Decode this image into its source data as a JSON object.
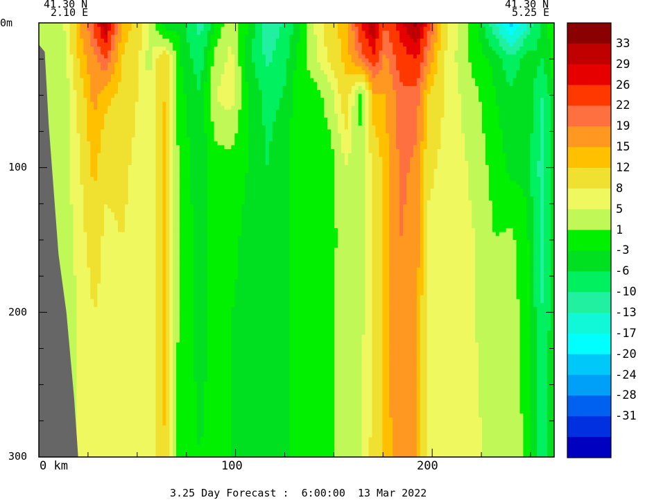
{
  "header": {
    "left_lat": "41.30 N",
    "left_lon": "2.10 E",
    "right_lat": "41.30 N",
    "right_lon": "5.25 E"
  },
  "footer": {
    "caption": "3.25 Day Forecast :  6:00:00  13 Mar 2022"
  },
  "chart_data": {
    "type": "heatmap",
    "title": "",
    "xlabel": "km",
    "ylabel": "m",
    "x_ticks": [
      "0 km",
      "100",
      "200"
    ],
    "y_ticks": [
      "0m",
      "100",
      "200",
      "300"
    ],
    "xlim": [
      0,
      262
    ],
    "ylim": [
      0,
      300
    ],
    "y_inverted": true,
    "colorbar": {
      "labels": [
        "33",
        "29",
        "26",
        "22",
        "19",
        "15",
        "12",
        "8",
        "5",
        "1",
        "-3",
        "-6",
        "-10",
        "-13",
        "-17",
        "-20",
        "-24",
        "-28",
        "-31"
      ],
      "levels": [
        35,
        33,
        29,
        26,
        22,
        19,
        15,
        12,
        8,
        5,
        1,
        -3,
        -6,
        -10,
        -13,
        -17,
        -20,
        -24,
        -28,
        -31,
        -35
      ],
      "colors": [
        "#8b0000",
        "#c00000",
        "#e60000",
        "#ff3800",
        "#ff7040",
        "#ff9820",
        "#ffc000",
        "#f0e030",
        "#f0f860",
        "#c0f858",
        "#00f000",
        "#00e020",
        "#00f060",
        "#20f0a0",
        "#10f8d8",
        "#00ffff",
        "#00c8f8",
        "#00a0f8",
        "#0060f0",
        "#0030e0",
        "#0000c0"
      ]
    },
    "bathymetry_km": [
      0,
      3,
      5,
      10,
      14,
      18,
      20,
      21
    ],
    "bathymetry_depth_m": [
      15,
      20,
      70,
      160,
      200,
      260,
      300,
      300
    ],
    "columns": [
      {
        "x": 0,
        "v": [
          2,
          2,
          2,
          2,
          2,
          2,
          2
        ]
      },
      {
        "x": 12,
        "v": [
          4,
          2,
          2,
          3,
          3,
          3,
          3
        ]
      },
      {
        "x": 20,
        "v": [
          14,
          12,
          9,
          7,
          6,
          5,
          5
        ]
      },
      {
        "x": 28,
        "v": [
          23,
          18,
          16,
          13,
          10,
          8,
          7
        ]
      },
      {
        "x": 34,
        "v": [
          32,
          22,
          13,
          9,
          7,
          7,
          6
        ]
      },
      {
        "x": 42,
        "v": [
          15,
          12,
          11,
          9,
          8,
          7,
          7
        ]
      },
      {
        "x": 50,
        "v": [
          10,
          9,
          8,
          7,
          7,
          6,
          6
        ]
      },
      {
        "x": 56,
        "v": [
          5,
          4,
          5,
          5,
          5,
          5,
          5
        ]
      },
      {
        "x": 64,
        "v": [
          -6,
          12,
          12,
          14,
          13,
          13,
          12
        ]
      },
      {
        "x": 72,
        "v": [
          -4,
          -3,
          -2,
          -1,
          -1,
          -1,
          -2
        ]
      },
      {
        "x": 82,
        "v": [
          -12,
          -8,
          -6,
          -5,
          -4,
          -4,
          -3
        ]
      },
      {
        "x": 90,
        "v": [
          -3,
          3,
          5,
          -1,
          -2,
          -2,
          -2
        ]
      },
      {
        "x": 98,
        "v": [
          5,
          6,
          7,
          -1,
          -2,
          -3,
          -3
        ]
      },
      {
        "x": 106,
        "v": [
          -3,
          -4,
          -3,
          -3,
          -4,
          -4,
          -4
        ]
      },
      {
        "x": 116,
        "v": [
          -12,
          -11,
          -7,
          -6,
          -5,
          -5,
          -5
        ]
      },
      {
        "x": 124,
        "v": [
          -10,
          -8,
          -6,
          -4,
          -4,
          -4,
          -4
        ]
      },
      {
        "x": 132,
        "v": [
          -4,
          -2,
          -1,
          -1,
          -1,
          -1,
          -1
        ]
      },
      {
        "x": 140,
        "v": [
          5,
          4,
          -1,
          -2,
          -2,
          -2,
          -2
        ]
      },
      {
        "x": 148,
        "v": [
          10,
          9,
          3,
          -1,
          -1,
          0,
          0
        ]
      },
      {
        "x": 156,
        "v": [
          14,
          13,
          11,
          5,
          4,
          4,
          4
        ]
      },
      {
        "x": 164,
        "v": [
          26,
          20,
          -1,
          2,
          3,
          4,
          5
        ]
      },
      {
        "x": 170,
        "v": [
          33,
          25,
          14,
          9,
          9,
          9,
          9
        ]
      },
      {
        "x": 176,
        "v": [
          22,
          18,
          15,
          13,
          13,
          13,
          13
        ]
      },
      {
        "x": 184,
        "v": [
          28,
          24,
          21,
          20,
          19,
          19,
          18
        ]
      },
      {
        "x": 192,
        "v": [
          34,
          26,
          21,
          18,
          17,
          16,
          15
        ]
      },
      {
        "x": 198,
        "v": [
          24,
          18,
          12,
          9,
          7,
          7,
          7
        ]
      },
      {
        "x": 206,
        "v": [
          10,
          8,
          8,
          7,
          6,
          6,
          6
        ]
      },
      {
        "x": 214,
        "v": [
          4,
          4,
          5,
          6,
          6,
          5,
          5
        ]
      },
      {
        "x": 222,
        "v": [
          -2,
          -1,
          2,
          4,
          5,
          5,
          6
        ]
      },
      {
        "x": 232,
        "v": [
          -13,
          -4,
          -3,
          -1,
          1,
          2,
          3
        ]
      },
      {
        "x": 240,
        "v": [
          -22,
          -9,
          -5,
          -4,
          2,
          3,
          4
        ]
      },
      {
        "x": 248,
        "v": [
          -14,
          -4,
          -3,
          -4,
          -2,
          -1,
          0
        ]
      },
      {
        "x": 256,
        "v": [
          -4,
          -6,
          -10,
          -12,
          -11,
          -10,
          -9
        ]
      },
      {
        "x": 262,
        "v": [
          -2,
          -1,
          -3,
          -4,
          -3,
          -3,
          -3
        ]
      }
    ],
    "depth_rows": [
      0,
      25,
      50,
      100,
      150,
      200,
      300
    ]
  }
}
